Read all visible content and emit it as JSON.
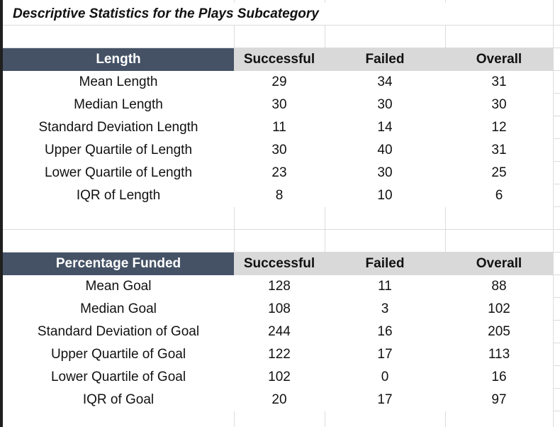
{
  "title": "Descriptive Statistics for the Plays Subcategory",
  "tables": [
    {
      "headers": [
        "Length",
        "Successful",
        "Failed",
        "Overall"
      ],
      "rows": [
        {
          "label": "Mean Length",
          "successful": "29",
          "failed": "34",
          "overall": "31"
        },
        {
          "label": "Median Length",
          "successful": "30",
          "failed": "30",
          "overall": "30"
        },
        {
          "label": "Standard Deviation Length",
          "successful": "11",
          "failed": "14",
          "overall": "12"
        },
        {
          "label": "Upper Quartile of Length",
          "successful": "30",
          "failed": "40",
          "overall": "31"
        },
        {
          "label": "Lower Quartile of Length",
          "successful": "23",
          "failed": "30",
          "overall": "25"
        },
        {
          "label": "IQR of Length",
          "successful": "8",
          "failed": "10",
          "overall": "6"
        }
      ]
    },
    {
      "headers": [
        "Percentage Funded",
        "Successful",
        "Failed",
        "Overall"
      ],
      "rows": [
        {
          "label": "Mean Goal",
          "successful": "128",
          "failed": "11",
          "overall": "88"
        },
        {
          "label": "Median Goal",
          "successful": "108",
          "failed": "3",
          "overall": "102"
        },
        {
          "label": "Standard Deviation of Goal",
          "successful": "244",
          "failed": "16",
          "overall": "205"
        },
        {
          "label": "Upper Quartile of Goal",
          "successful": "122",
          "failed": "17",
          "overall": "113"
        },
        {
          "label": "Lower Quartile of Goal",
          "successful": "102",
          "failed": "0",
          "overall": "16"
        },
        {
          "label": "IQR of Goal",
          "successful": "20",
          "failed": "17",
          "overall": "97"
        }
      ]
    }
  ],
  "colors": {
    "header_dark": "#455266",
    "header_light": "#d9d9d9",
    "gridline": "#dcdcdc"
  }
}
